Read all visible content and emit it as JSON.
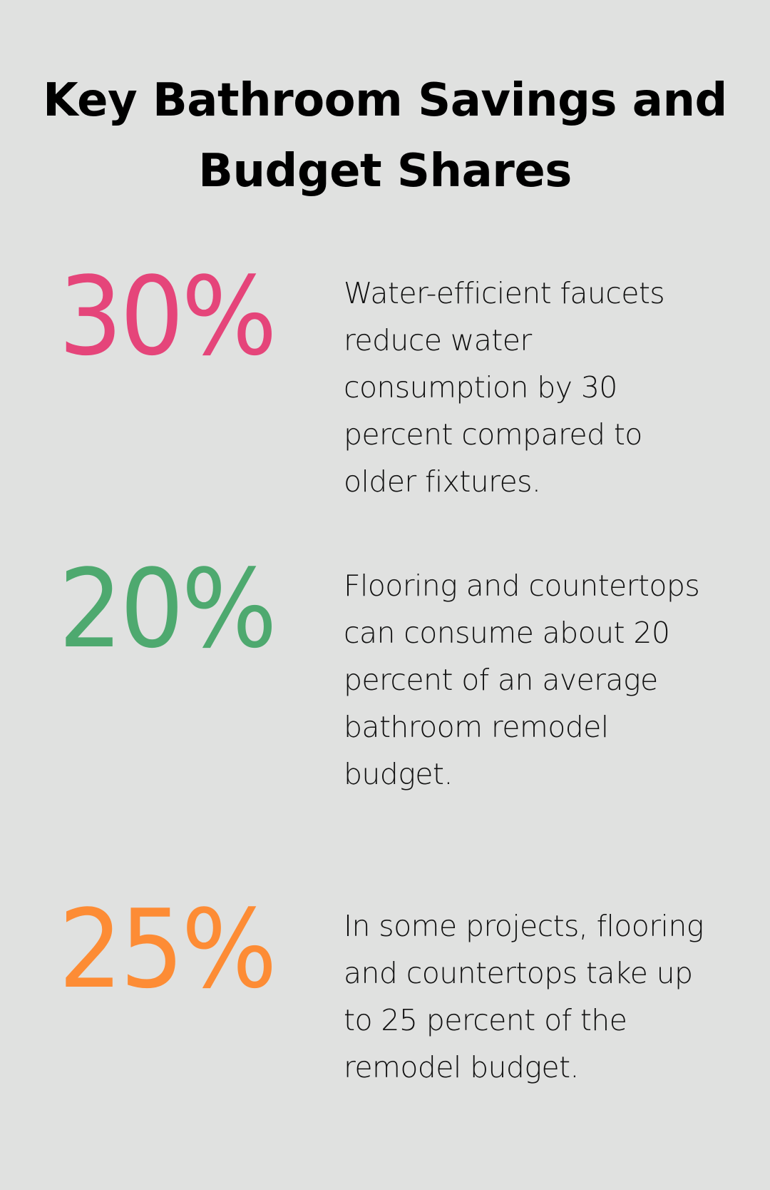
{
  "title": "Key Bathroom Savings and Budget Shares",
  "stats": [
    {
      "value": "30%",
      "color": "#E5457A",
      "text": "Water-efficient faucets reduce water consumption by 30 percent compared to older fixtures."
    },
    {
      "value": "20%",
      "color": "#4EA96F",
      "text": "Flooring and countertops can consume about 20 percent of an average bathroom remodel budget."
    },
    {
      "value": "25%",
      "color": "#FD8C35",
      "text": "In some projects, flooring and countertops take up to 25 percent of the remodel budget."
    }
  ],
  "colors": {
    "background": "#E0E1E0",
    "text": "#000000"
  }
}
